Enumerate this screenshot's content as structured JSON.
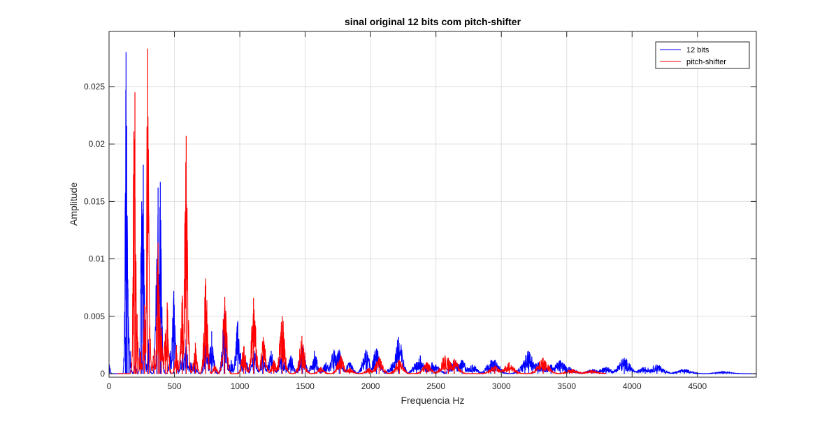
{
  "chart_data": {
    "type": "line",
    "title": "sinal original 12 bits com pitch-shifter",
    "xlabel": "Frequencia Hz",
    "ylabel": "Amplitude",
    "xlim": [
      0,
      4950
    ],
    "ylim": [
      -0.0003,
      0.0298
    ],
    "xticks": [
      0,
      500,
      1000,
      1500,
      2000,
      2500,
      3000,
      3500,
      4000,
      4500
    ],
    "xtick_labels": [
      "0",
      "500",
      "1000",
      "1500",
      "2000",
      "2500",
      "3000",
      "3500",
      "4000",
      "4500"
    ],
    "yticks": [
      0,
      0.005,
      0.01,
      0.015,
      0.02,
      0.025
    ],
    "ytick_labels": [
      "0",
      "0.005",
      "0.01",
      "0.015",
      "0.02",
      "0.025"
    ],
    "grid": true,
    "legend": "top-right",
    "series": [
      {
        "name": "12 bits",
        "color": "#0000ff",
        "peaks": [
          [
            3,
            0.0008
          ],
          [
            125,
            0.0032
          ],
          [
            130,
            0.028
          ],
          [
            135,
            0.0216
          ],
          [
            145,
            0.0074
          ],
          [
            160,
            0.002
          ],
          [
            200,
            0.001
          ],
          [
            250,
            0.015
          ],
          [
            262,
            0.0182
          ],
          [
            300,
            0.003
          ],
          [
            365,
            0.01
          ],
          [
            375,
            0.0162
          ],
          [
            392,
            0.0167
          ],
          [
            400,
            0.004
          ],
          [
            470,
            0.002
          ],
          [
            495,
            0.0072
          ],
          [
            530,
            0.0008
          ],
          [
            560,
            0.002
          ],
          [
            588,
            0.003
          ],
          [
            625,
            0.001
          ],
          [
            655,
            0.001
          ],
          [
            740,
            0.003
          ],
          [
            785,
            0.0037
          ],
          [
            880,
            0.0052
          ],
          [
            935,
            0.0012
          ],
          [
            985,
            0.0046
          ],
          [
            1045,
            0.0012
          ],
          [
            1110,
            0.002
          ],
          [
            1175,
            0.0016
          ],
          [
            1240,
            0.002
          ],
          [
            1320,
            0.002
          ],
          [
            1390,
            0.0016
          ],
          [
            1480,
            0.0024
          ],
          [
            1570,
            0.002
          ],
          [
            1660,
            0.001
          ],
          [
            1720,
            0.0021
          ],
          [
            1760,
            0.0021
          ],
          [
            1840,
            0.001
          ],
          [
            1965,
            0.0021
          ],
          [
            2045,
            0.0022
          ],
          [
            2170,
            0.001
          ],
          [
            2215,
            0.0032
          ],
          [
            2350,
            0.001
          ],
          [
            2380,
            0.0016
          ],
          [
            2470,
            0.001
          ],
          [
            2500,
            0.0008
          ],
          [
            2640,
            0.0012
          ],
          [
            2700,
            0.0012
          ],
          [
            2780,
            0.0008
          ],
          [
            2920,
            0.0012
          ],
          [
            2950,
            0.0012
          ],
          [
            3180,
            0.001
          ],
          [
            3210,
            0.002
          ],
          [
            3240,
            0.001
          ],
          [
            3280,
            0.001
          ],
          [
            3380,
            0.0008
          ],
          [
            3450,
            0.0012
          ],
          [
            3520,
            0.0006
          ],
          [
            3700,
            0.0004
          ],
          [
            3800,
            0.0006
          ],
          [
            3940,
            0.0014
          ],
          [
            4100,
            0.0006
          ],
          [
            4190,
            0.0008
          ],
          [
            4400,
            0.0004
          ],
          [
            4700,
            0.0002
          ]
        ]
      },
      {
        "name": "pitch-shifter",
        "color": "#ff0000",
        "peaks": [
          [
            190,
            0.0211
          ],
          [
            198,
            0.0245
          ],
          [
            205,
            0.005
          ],
          [
            215,
            0.0052
          ],
          [
            240,
            0.002
          ],
          [
            270,
            0.006
          ],
          [
            295,
            0.0283
          ],
          [
            310,
            0.004
          ],
          [
            345,
            0.0022
          ],
          [
            375,
            0.0114
          ],
          [
            385,
            0.006
          ],
          [
            398,
            0.004
          ],
          [
            430,
            0.0035
          ],
          [
            445,
            0.0062
          ],
          [
            515,
            0.0025
          ],
          [
            560,
            0.0068
          ],
          [
            590,
            0.0207
          ],
          [
            660,
            0.0027
          ],
          [
            740,
            0.0083
          ],
          [
            810,
            0.0008
          ],
          [
            885,
            0.0067
          ],
          [
            1030,
            0.0024
          ],
          [
            1105,
            0.0066
          ],
          [
            1180,
            0.0032
          ],
          [
            1260,
            0.0012
          ],
          [
            1325,
            0.005
          ],
          [
            1475,
            0.0033
          ],
          [
            1620,
            0.0006
          ],
          [
            1770,
            0.0016
          ],
          [
            1840,
            0.0005
          ],
          [
            1990,
            0.0005
          ],
          [
            2065,
            0.0015
          ],
          [
            2220,
            0.0012
          ],
          [
            2430,
            0.001
          ],
          [
            2570,
            0.0016
          ],
          [
            2595,
            0.0014
          ],
          [
            2640,
            0.0013
          ],
          [
            2950,
            0.0007
          ],
          [
            3060,
            0.001
          ],
          [
            3320,
            0.0014
          ],
          [
            3540,
            0.0004
          ],
          [
            3690,
            0.0003
          ]
        ]
      }
    ]
  }
}
